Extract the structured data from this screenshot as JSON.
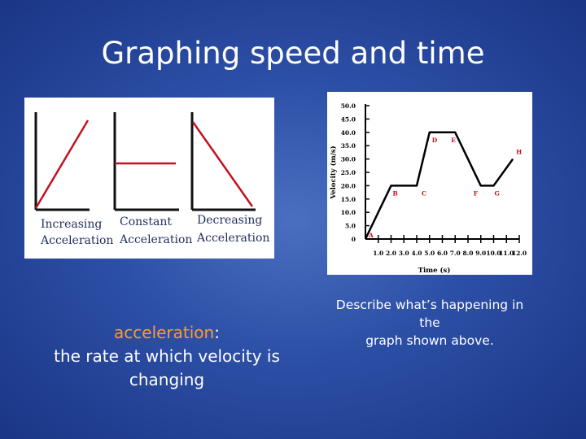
{
  "slide": {
    "title": "Graphing speed and time",
    "definition": {
      "term": "acceleration",
      "colon": ":",
      "body_line1": "the rate at which velocity is",
      "body_line2": "changing"
    },
    "prompt_line1": "Describe what’s happening in the",
    "prompt_line2": "graph shown above."
  },
  "left_figure": {
    "panels": [
      {
        "line1": "Increasing",
        "line2": "Acceleration",
        "shape": "rising-diagonal"
      },
      {
        "line1": "Constant",
        "line2": "Acceleration",
        "shape": "horizontal"
      },
      {
        "line1": "Decreasing",
        "line2": "Acceleration",
        "shape": "falling-diagonal"
      }
    ],
    "colors": {
      "axis": "#111111",
      "line": "#c1121f"
    }
  },
  "chart_data": {
    "type": "line",
    "xlabel": "Time (s)",
    "ylabel": "Velocity (m/s)",
    "xlim": [
      0,
      12
    ],
    "ylim": [
      0,
      50
    ],
    "x_tick_labels": [
      "1.0",
      "2.0",
      "3.0",
      "4.0",
      "5.0",
      "6.0",
      "7.0",
      "8.0",
      "9.0",
      "10.0",
      "11.0",
      "12.0"
    ],
    "y_tick_labels": [
      "0",
      "5.0",
      "10.0",
      "15.0",
      "20.0",
      "25.0",
      "30.0",
      "35.0",
      "40.0",
      "45.0",
      "50.0"
    ],
    "x": [
      0,
      2,
      4,
      5,
      7,
      9,
      10,
      11.5
    ],
    "y": [
      0,
      20,
      20,
      40,
      40,
      20,
      20,
      30
    ],
    "point_labels": [
      "A",
      "B",
      "C",
      "D",
      "E",
      "F",
      "G",
      "H"
    ],
    "grid": false,
    "colors": {
      "line": "#000000",
      "labels": "#c1121f"
    }
  }
}
